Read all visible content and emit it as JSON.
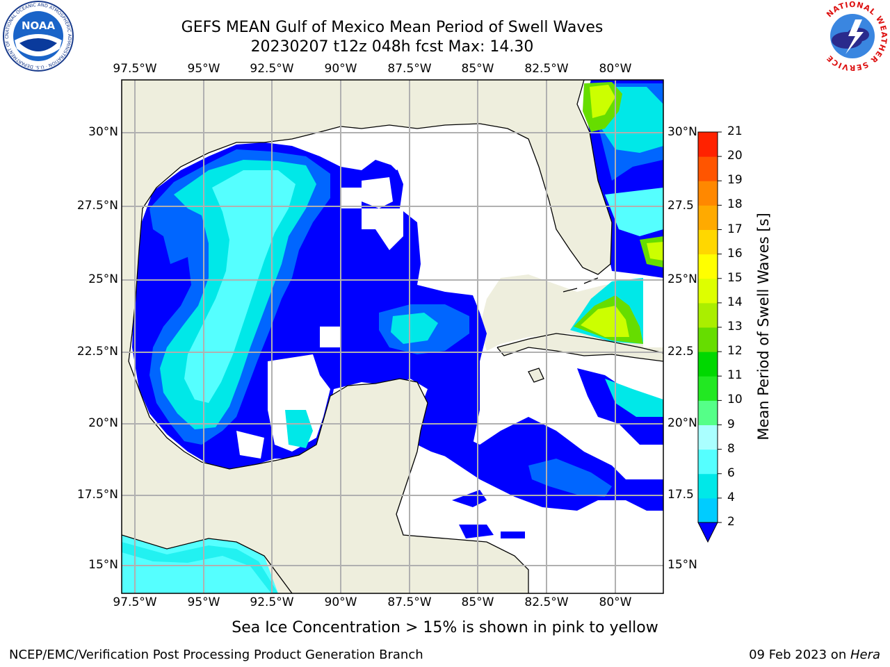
{
  "title": {
    "line1": "GEFS MEAN Gulf of Mexico Mean Period of Swell Waves",
    "line2": "20230207 t12z 048h fcst   Max: 14.30"
  },
  "axes": {
    "lon_labels": [
      "97.5°W",
      "95°W",
      "92.5°W",
      "90°W",
      "87.5°W",
      "85°W",
      "82.5°W",
      "80°W"
    ],
    "lat_labels_left": [
      "30°N",
      "27.5°N",
      "25°N",
      "22.5°N",
      "20°N",
      "17.5°N",
      "15°N"
    ],
    "lat_labels_right": [
      "30°N",
      "27.5",
      "25°N",
      "22.5",
      "20°N",
      "17.5",
      "15°N"
    ]
  },
  "colorbar": {
    "label": "Mean Period of Swell Waves [s]",
    "ticks": [
      "2",
      "4",
      "6",
      "8",
      "9",
      "10",
      "11",
      "12",
      "13",
      "14",
      "15",
      "16",
      "17",
      "18",
      "19",
      "20",
      "21"
    ],
    "colors": [
      "#0066ff",
      "#00ccff",
      "#00e8e8",
      "#55ffff",
      "#aaffff",
      "#55ff88",
      "#22e822",
      "#00d800",
      "#66dd00",
      "#aaee00",
      "#ddff00",
      "#ffff00",
      "#ffd700",
      "#ffaa00",
      "#ff8800",
      "#ff5500",
      "#ff2200",
      "#ff0000"
    ]
  },
  "colors": {
    "land": "#eeeedd",
    "ocean_no_data": "#ffffff",
    "deep_blue": "#0000ff",
    "mid_blue": "#0066ff",
    "cyan": "#00e8e8",
    "light_cyan": "#55ffff",
    "green": "#66dd00",
    "yellow_green": "#ccff00",
    "grid": "#b0b0b0"
  },
  "logos": {
    "noaa": "NOAA",
    "noaa_ring": "NATIONAL OCEANIC AND ATMOSPHERIC ADMINISTRATION · U.S. DEPARTMENT OF COMMERCE",
    "nws_ring": "NATIONAL WEATHER SERVICE"
  },
  "note": "Sea Ice Concentration > 15% is shown in pink to yellow",
  "footer": {
    "left": "NCEP/EMC/Verification Post Processing Product Generation Branch",
    "date": "09 Feb 2023 on ",
    "host": "Hera"
  }
}
